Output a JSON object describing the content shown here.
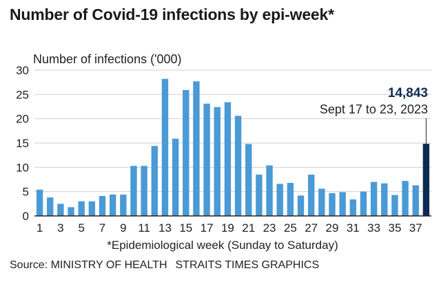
{
  "title": "Number of Covid-19 infections by epi-week*",
  "source": "Source: MINISTRY OF HEALTH",
  "credit": "STRAITS TIMES GRAPHICS",
  "colors": {
    "bar": "#4a9ad6",
    "highlight": "#0d2b52",
    "axis": "#222222",
    "grid": "#cfcfcf"
  },
  "chart_data": {
    "type": "bar",
    "ylabel": "Number of infections ('000)",
    "xlabel": "*Epidemiological week (Sunday to Saturday)",
    "ylim": [
      0,
      30
    ],
    "yticks": [
      0,
      5,
      10,
      15,
      20,
      25,
      30
    ],
    "xticks": [
      1,
      3,
      5,
      7,
      9,
      11,
      13,
      15,
      17,
      19,
      21,
      23,
      25,
      27,
      29,
      31,
      33,
      35,
      37
    ],
    "grid": true,
    "categories": [
      1,
      2,
      3,
      4,
      5,
      6,
      7,
      8,
      9,
      10,
      11,
      12,
      13,
      14,
      15,
      16,
      17,
      18,
      19,
      20,
      21,
      22,
      23,
      24,
      25,
      26,
      27,
      28,
      29,
      30,
      31,
      32,
      33,
      34,
      35,
      36,
      37,
      38
    ],
    "values": [
      5.4,
      3.8,
      2.5,
      1.8,
      3.0,
      3.0,
      4.1,
      4.4,
      4.4,
      10.3,
      10.3,
      14.4,
      28.2,
      15.9,
      25.9,
      27.7,
      23.1,
      22.4,
      23.4,
      20.6,
      14.8,
      8.5,
      10.4,
      6.6,
      6.8,
      4.2,
      8.5,
      5.6,
      4.7,
      4.9,
      3.4,
      5.0,
      7.0,
      6.7,
      4.3,
      7.2,
      6.3,
      14.843
    ],
    "highlight": {
      "index": 37,
      "value_label": "14,843",
      "date_label": "Sept 17 to 23, 2023"
    }
  }
}
